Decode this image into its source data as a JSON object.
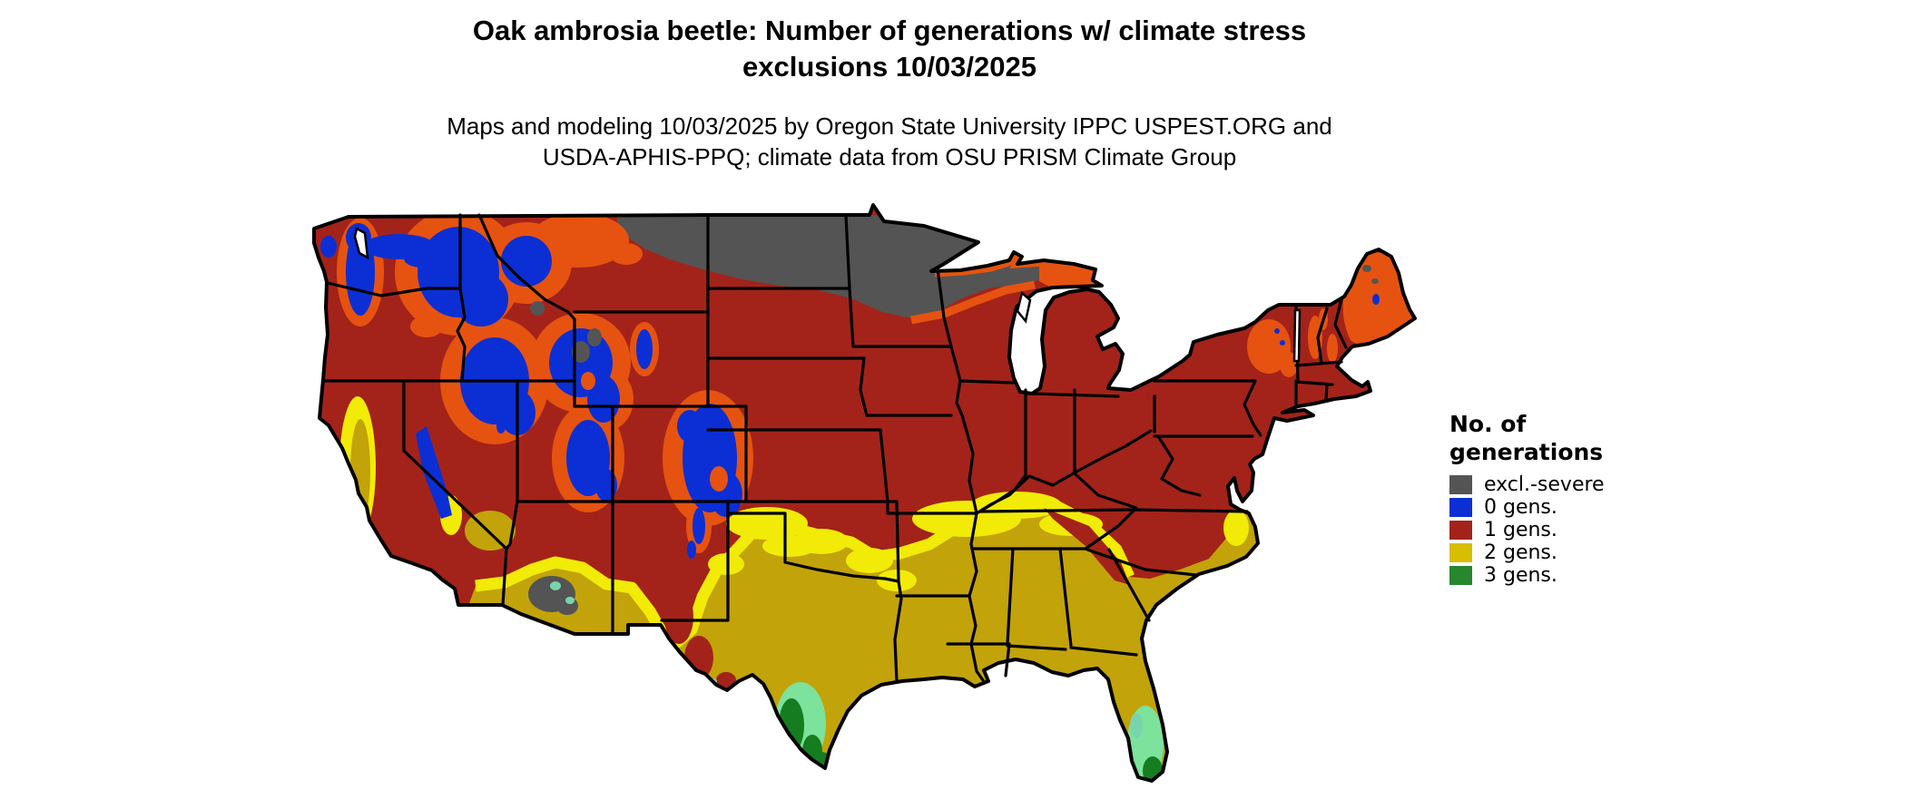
{
  "title": {
    "line1": "Oak ambrosia beetle: Number of generations w/ climate stress",
    "line2": "exclusions 10/03/2025"
  },
  "subtitle": {
    "line1": "Maps and modeling 10/03/2025 by Oregon State University IPPC USPEST.ORG and",
    "line2": "USDA-APHIS-PPQ; climate data from OSU PRISM Climate Group"
  },
  "legend": {
    "title_line1": "No. of",
    "title_line2": "generations",
    "items": [
      {
        "key": "excl",
        "label": "excl.-severe",
        "color": "#545454"
      },
      {
        "key": "g0",
        "label": "0 gens.",
        "color": "#0b2fd4"
      },
      {
        "key": "g1",
        "label": "1 gens.",
        "color": "#a3231a"
      },
      {
        "key": "g2",
        "label": "2 gens.",
        "color": "#d8be00"
      },
      {
        "key": "g3",
        "label": "3 gens.",
        "color": "#27862e"
      }
    ]
  },
  "map": {
    "kind": "US lower-48 raster map of beetle generations",
    "extra_colors": {
      "mustard": "#c2a30a",
      "bright": "#f1eb07",
      "orange": "#e65310",
      "ltgreen": "#7de29b",
      "dkgreen": "#157d20",
      "teal": "#79d4ad",
      "water": "#ffffff",
      "border": "#000000"
    }
  }
}
